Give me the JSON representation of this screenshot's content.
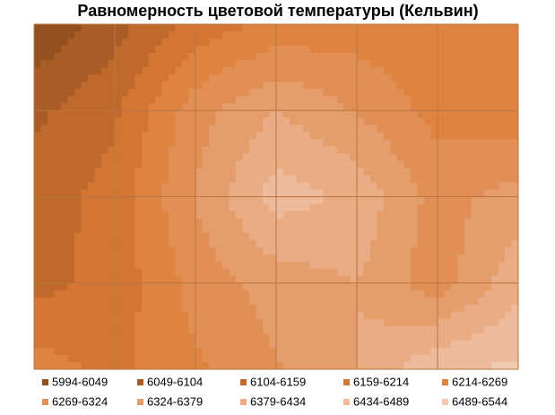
{
  "chart_data": {
    "type": "contour",
    "title": "Равномерность цветовой температуры (Кельвин)",
    "levels": [
      5994,
      6049,
      6104,
      6159,
      6214,
      6269,
      6324,
      6379,
      6434,
      6489,
      6544
    ],
    "z": [
      [
        6000,
        6080,
        6180,
        6230,
        6240,
        6220,
        6230
      ],
      [
        6090,
        6150,
        6300,
        6380,
        6320,
        6250,
        6230
      ],
      [
        6130,
        6180,
        6330,
        6460,
        6420,
        6300,
        6350
      ],
      [
        6140,
        6180,
        6290,
        6350,
        6380,
        6290,
        6420
      ],
      [
        6240,
        6200,
        6260,
        6320,
        6380,
        6480,
        6500
      ]
    ],
    "series": [
      {
        "name": "5994-6049",
        "color": "#955020"
      },
      {
        "name": "6049-6104",
        "color": "#aa5c27"
      },
      {
        "name": "6104-6159",
        "color": "#c0692d"
      },
      {
        "name": "6159-6214",
        "color": "#d47633"
      },
      {
        "name": "6214-6269",
        "color": "#de8440"
      },
      {
        "name": "6269-6324",
        "color": "#e28f55"
      },
      {
        "name": "6324-6379",
        "color": "#e59d6c"
      },
      {
        "name": "6379-6434",
        "color": "#e9ac84"
      },
      {
        "name": "6434-6489",
        "color": "#edbb9b"
      },
      {
        "name": "6489-6544",
        "color": "#f1cab2"
      }
    ]
  }
}
